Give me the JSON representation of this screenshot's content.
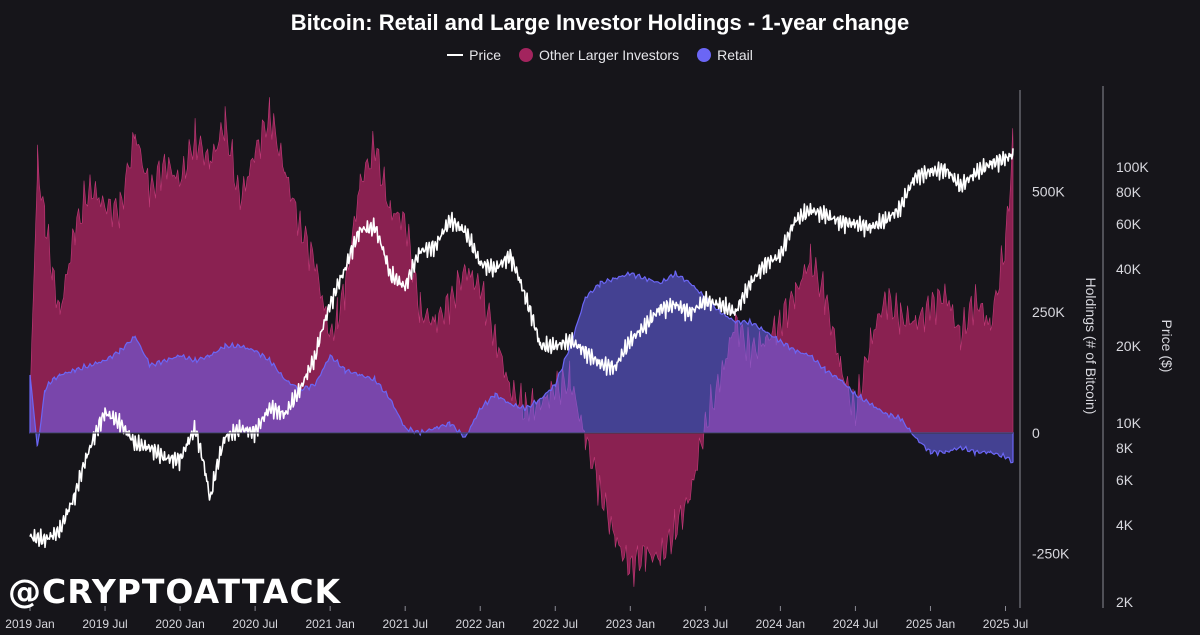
{
  "title": "Bitcoin: Retail and Large Investor Holdings - 1-year change",
  "legend": [
    {
      "label": "Price",
      "color": "#ffffff",
      "kind": "line"
    },
    {
      "label": "Other Larger Investors",
      "color": "#a3245e",
      "kind": "dot"
    },
    {
      "label": "Retail",
      "color": "#6b66f5",
      "kind": "dot"
    }
  ],
  "watermark": "@CRYPTOATTACK",
  "chart_data": {
    "type": "area",
    "title": "Bitcoin: Retail and Large Investor Holdings - 1-year change",
    "ylabel": "Holdings (# of Bitcoin)",
    "y2label": "Price ($)",
    "x_tick_labels": [
      "2019 Jan",
      "2019 Jul",
      "2020 Jan",
      "2020 Jul",
      "2021 Jan",
      "2021 Jul",
      "2022 Jan",
      "2022 Jul",
      "2023 Jan",
      "2023 Jul",
      "2024 Jan",
      "2024 Jul",
      "2025 Jan",
      "2025 Jul"
    ],
    "x_range": [
      2019.0,
      2025.55
    ],
    "y_ticks": [
      {
        "value": 500000,
        "label": "500K"
      },
      {
        "value": 250000,
        "label": "250K"
      },
      {
        "value": 0,
        "label": "0"
      },
      {
        "value": -250000,
        "label": "-250K"
      }
    ],
    "ylim": [
      -350000,
      710000
    ],
    "y2_ticks": [
      {
        "value": 100000,
        "label": "100K"
      },
      {
        "value": 80000,
        "label": "80K"
      },
      {
        "value": 60000,
        "label": "60K"
      },
      {
        "value": 40000,
        "label": "40K"
      },
      {
        "value": 20000,
        "label": "20K"
      },
      {
        "value": 10000,
        "label": "10K"
      },
      {
        "value": 8000,
        "label": "8K"
      },
      {
        "value": 6000,
        "label": "6K"
      },
      {
        "value": 4000,
        "label": "4K"
      },
      {
        "value": 2000,
        "label": "2K"
      }
    ],
    "y2_scale": "log",
    "y2lim": [
      2000,
      200000
    ],
    "series": [
      {
        "name": "Other Larger Investors",
        "color": "#a3245e",
        "x": [
          2019.0,
          2019.05,
          2019.1,
          2019.15,
          2019.2,
          2019.3,
          2019.4,
          2019.5,
          2019.6,
          2019.7,
          2019.8,
          2019.9,
          2020.0,
          2020.1,
          2020.2,
          2020.3,
          2020.4,
          2020.5,
          2020.6,
          2020.7,
          2020.8,
          2020.9,
          2021.0,
          2021.05,
          2021.1,
          2021.2,
          2021.3,
          2021.4,
          2021.5,
          2021.6,
          2021.7,
          2021.8,
          2021.9,
          2022.0,
          2022.1,
          2022.2,
          2022.3,
          2022.4,
          2022.5,
          2022.6,
          2022.7,
          2022.8,
          2022.9,
          2023.0,
          2023.1,
          2023.2,
          2023.3,
          2023.4,
          2023.5,
          2023.6,
          2023.7,
          2023.8,
          2023.9,
          2024.0,
          2024.1,
          2024.2,
          2024.3,
          2024.4,
          2024.5,
          2024.6,
          2024.7,
          2024.8,
          2024.9,
          2025.0,
          2025.1,
          2025.2,
          2025.3,
          2025.4,
          2025.5,
          2025.55
        ],
        "values": [
          60000,
          560000,
          440000,
          330000,
          250000,
          420000,
          510000,
          470000,
          460000,
          620000,
          500000,
          560000,
          520000,
          610000,
          560000,
          640000,
          480000,
          580000,
          660000,
          540000,
          430000,
          350000,
          200000,
          240000,
          300000,
          520000,
          590000,
          460000,
          440000,
          250000,
          230000,
          270000,
          340000,
          300000,
          200000,
          90000,
          50000,
          60000,
          90000,
          110000,
          -10000,
          -120000,
          -220000,
          -280000,
          -250000,
          -260000,
          -200000,
          -130000,
          20000,
          110000,
          230000,
          170000,
          190000,
          230000,
          290000,
          360000,
          280000,
          140000,
          40000,
          190000,
          280000,
          240000,
          230000,
          260000,
          290000,
          200000,
          280000,
          220000,
          390000,
          600000
        ]
      },
      {
        "name": "Retail",
        "color": "#6b66f5",
        "x": [
          2019.0,
          2019.05,
          2019.1,
          2019.15,
          2019.2,
          2019.3,
          2019.4,
          2019.5,
          2019.6,
          2019.7,
          2019.8,
          2019.9,
          2020.0,
          2020.1,
          2020.2,
          2020.3,
          2020.4,
          2020.5,
          2020.6,
          2020.7,
          2020.8,
          2020.9,
          2021.0,
          2021.1,
          2021.2,
          2021.3,
          2021.4,
          2021.5,
          2021.6,
          2021.7,
          2021.8,
          2021.9,
          2022.0,
          2022.1,
          2022.2,
          2022.3,
          2022.4,
          2022.5,
          2022.6,
          2022.7,
          2022.8,
          2022.9,
          2023.0,
          2023.1,
          2023.2,
          2023.3,
          2023.4,
          2023.5,
          2023.6,
          2023.7,
          2023.8,
          2023.9,
          2024.0,
          2024.1,
          2024.2,
          2024.3,
          2024.4,
          2024.5,
          2024.6,
          2024.7,
          2024.8,
          2024.9,
          2025.0,
          2025.1,
          2025.2,
          2025.3,
          2025.4,
          2025.5,
          2025.55
        ],
        "values": [
          120000,
          -30000,
          90000,
          110000,
          120000,
          130000,
          140000,
          150000,
          170000,
          200000,
          140000,
          150000,
          160000,
          150000,
          160000,
          180000,
          180000,
          170000,
          150000,
          110000,
          90000,
          100000,
          160000,
          130000,
          120000,
          110000,
          70000,
          10000,
          0,
          10000,
          20000,
          -10000,
          50000,
          80000,
          60000,
          50000,
          70000,
          100000,
          180000,
          280000,
          310000,
          320000,
          330000,
          320000,
          310000,
          330000,
          310000,
          280000,
          250000,
          230000,
          230000,
          210000,
          190000,
          170000,
          160000,
          130000,
          110000,
          80000,
          60000,
          40000,
          30000,
          -10000,
          -40000,
          -40000,
          -30000,
          -40000,
          -40000,
          -50000,
          -60000
        ]
      },
      {
        "name": "Price",
        "color": "#ffffff",
        "x": [
          2019.0,
          2019.1,
          2019.2,
          2019.3,
          2019.4,
          2019.5,
          2019.6,
          2019.7,
          2019.8,
          2019.9,
          2020.0,
          2020.1,
          2020.2,
          2020.3,
          2020.4,
          2020.5,
          2020.6,
          2020.7,
          2020.8,
          2020.9,
          2021.0,
          2021.1,
          2021.2,
          2021.3,
          2021.4,
          2021.5,
          2021.6,
          2021.7,
          2021.8,
          2021.9,
          2022.0,
          2022.1,
          2022.2,
          2022.3,
          2022.4,
          2022.5,
          2022.6,
          2022.7,
          2022.8,
          2022.9,
          2023.0,
          2023.1,
          2023.2,
          2023.3,
          2023.4,
          2023.5,
          2023.6,
          2023.7,
          2023.8,
          2023.9,
          2024.0,
          2024.1,
          2024.2,
          2024.3,
          2024.4,
          2024.5,
          2024.6,
          2024.7,
          2024.8,
          2024.9,
          2025.0,
          2025.1,
          2025.2,
          2025.3,
          2025.4,
          2025.5,
          2025.55
        ],
        "values": [
          3600,
          3500,
          3800,
          5200,
          8000,
          11000,
          10000,
          8300,
          8000,
          7300,
          7200,
          9500,
          5000,
          8800,
          9500,
          9200,
          11500,
          10800,
          13500,
          18000,
          29000,
          40000,
          57000,
          58000,
          38000,
          34000,
          47000,
          49000,
          62000,
          56000,
          42000,
          40000,
          45000,
          31000,
          20000,
          20000,
          21000,
          19000,
          17000,
          16500,
          21000,
          24000,
          28000,
          29000,
          27000,
          30000,
          29000,
          27000,
          35000,
          42000,
          45000,
          62000,
          68000,
          65000,
          61000,
          60000,
          58000,
          62000,
          69000,
          92000,
          96000,
          98000,
          84000,
          95000,
          103000,
          108000,
          112000
        ]
      }
    ]
  }
}
